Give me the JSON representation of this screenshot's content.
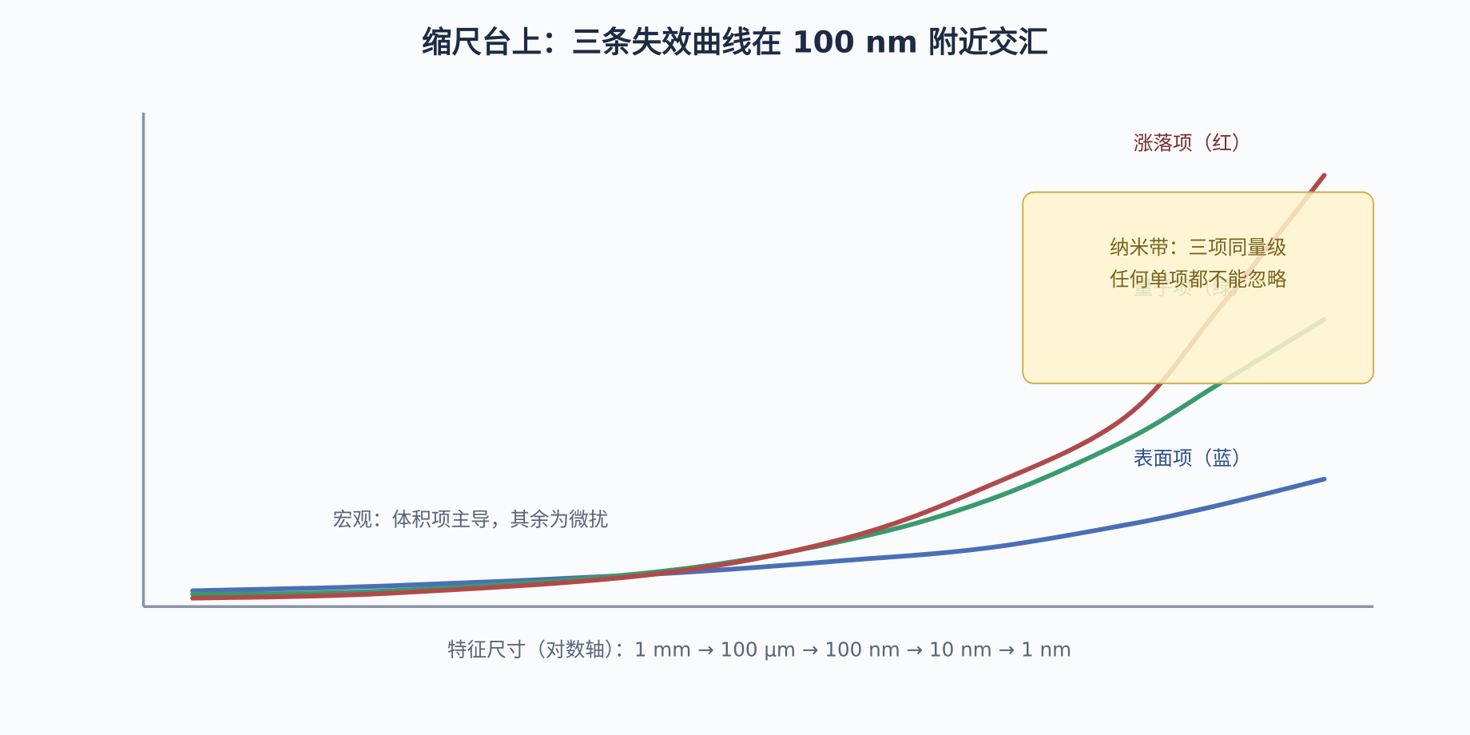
{
  "chart_data": {
    "type": "line",
    "title": "缩尺台上：三条失效曲线在 100 nm 附近交汇",
    "xlabel": "特征尺寸（对数轴）：1 mm → 100 μm → 100 nm → 10 nm → 1 nm",
    "x": [
      4,
      20,
      41.7,
      56.9,
      68.4,
      79.8,
      87.4,
      96
    ],
    "xlim": [
      0,
      100
    ],
    "ylim": [
      0,
      100
    ],
    "series": [
      {
        "name": "表面项（蓝）",
        "color": "#4a6fb5",
        "values": [
          3.2,
          4.2,
          6.6,
          9.3,
          11.8,
          16.5,
          20.5,
          25.8
        ]
      },
      {
        "name": "量子项（绿）",
        "color": "#3a9a6e",
        "values": [
          2.5,
          3.2,
          7.0,
          13.3,
          21.3,
          33.6,
          45,
          58.1
        ]
      },
      {
        "name": "涨落项（红）",
        "color": "#b04a4a",
        "values": [
          1.7,
          2.7,
          6.6,
          13.7,
          24.1,
          38.3,
          60.2,
          87.3
        ]
      }
    ],
    "annotation": "宏观：体积项主导，其余为微扰",
    "note_box": [
      "纳米带：三项同量级",
      "任何单项都不能忽略"
    ]
  }
}
